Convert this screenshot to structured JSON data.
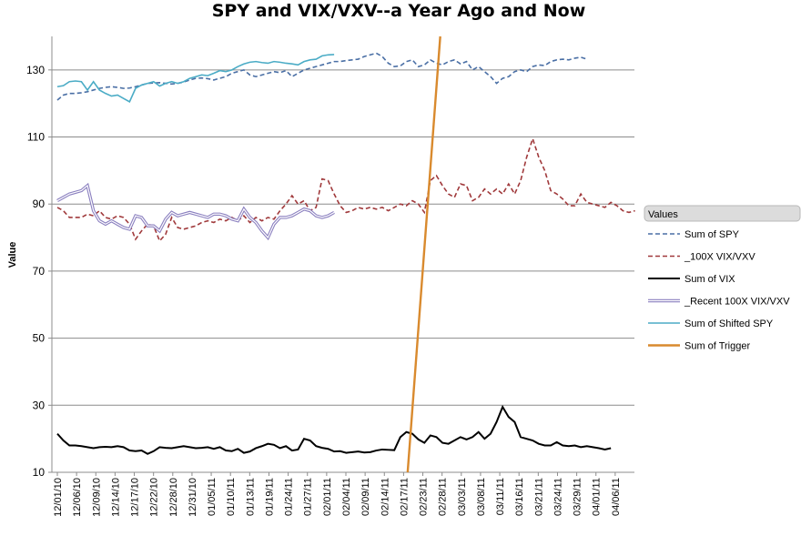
{
  "chart_data": {
    "type": "line",
    "title": "SPY and VIX/VXV--a Year Ago and Now",
    "ylabel": "Value",
    "ylim": [
      10,
      140
    ],
    "yticks": [
      10,
      30,
      50,
      70,
      90,
      110,
      130
    ],
    "grid": true,
    "legend_placement": "right",
    "legend_title": "Values",
    "x_tick_labels": [
      "12/01/10",
      "12/06/10",
      "12/09/10",
      "12/14/10",
      "12/17/10",
      "12/22/10",
      "12/28/10",
      "12/31/10",
      "01/05/11",
      "01/10/11",
      "01/13/11",
      "01/19/11",
      "01/24/11",
      "01/27/11",
      "02/01/11",
      "02/04/11",
      "02/09/11",
      "02/14/11",
      "02/17/11",
      "02/23/11",
      "02/28/11",
      "03/03/11",
      "03/08/11",
      "03/11/11",
      "03/16/11",
      "03/21/11",
      "03/24/11",
      "03/29/11",
      "04/01/11",
      "04/06/11"
    ],
    "series": [
      {
        "name": "Sum of SPY",
        "color": "#4a6fa5",
        "dash": "5,3",
        "width": 1.6,
        "values": [
          121,
          122.5,
          123,
          123,
          123.2,
          123.5,
          124,
          124.5,
          124.8,
          125,
          124.8,
          124.5,
          124.6,
          125,
          125.5,
          126,
          126.1,
          126.2,
          126,
          125.8,
          126,
          126.4,
          127,
          127.5,
          127.6,
          127.4,
          127,
          127.5,
          128,
          129,
          129.5,
          130,
          128.5,
          128,
          128.5,
          129,
          129.5,
          129.2,
          129.8,
          128,
          129,
          130,
          130.5,
          131,
          131.5,
          132,
          132.5,
          132.5,
          132.8,
          133,
          133.2,
          134,
          134.5,
          135,
          134,
          132,
          131,
          131.2,
          132.5,
          133,
          131,
          131.5,
          133,
          132,
          131.5,
          132.5,
          133,
          131.8,
          132.5,
          130,
          131,
          129.5,
          128,
          126,
          127.5,
          128,
          129.5,
          130,
          129.5,
          131,
          131.5,
          131.3,
          132.5,
          133,
          133.2,
          133,
          133.5,
          133.8,
          133.2
        ]
      },
      {
        "name": "_100X VIX/VXV",
        "color": "#a0393b",
        "dash": "5,3",
        "width": 1.6,
        "values": [
          89,
          88,
          86,
          86,
          86,
          87,
          86.5,
          88,
          86,
          85.5,
          86.5,
          86,
          84,
          79.5,
          82,
          84,
          83.5,
          79,
          81,
          86,
          83,
          82.5,
          83,
          83.5,
          84.5,
          85,
          84.5,
          85.5,
          85,
          86,
          85,
          86.5,
          84.5,
          86,
          85,
          86,
          85.5,
          88,
          90,
          92.5,
          90,
          91,
          88,
          89,
          97.5,
          97,
          93,
          89.5,
          87.5,
          88,
          89,
          88.5,
          89,
          88.5,
          89,
          88,
          89,
          90,
          89.5,
          91,
          90,
          87.5,
          97,
          98.5,
          95.5,
          93,
          92,
          96,
          95.5,
          91,
          92,
          94.5,
          93,
          94.5,
          93,
          96,
          93,
          97,
          104,
          109.5,
          104,
          100,
          94,
          93,
          91.5,
          89.5,
          89.5,
          93,
          90.5,
          90,
          89.5,
          89,
          90.5,
          89.5,
          88,
          87.5,
          88
        ]
      },
      {
        "name": "Sum of VIX",
        "color": "#000000",
        "dash": "",
        "width": 2.0,
        "values": [
          21.5,
          19.5,
          18,
          18,
          17.8,
          17.5,
          17.2,
          17.5,
          17.6,
          17.5,
          17.8,
          17.5,
          16.5,
          16.3,
          16.5,
          15.5,
          16.3,
          17.5,
          17.3,
          17.2,
          17.5,
          17.8,
          17.5,
          17.2,
          17.3,
          17.5,
          17,
          17.5,
          16.5,
          16.3,
          17,
          15.8,
          16.2,
          17.2,
          17.8,
          18.5,
          18.2,
          17.2,
          17.8,
          16.5,
          16.8,
          20,
          19.5,
          17.8,
          17.3,
          17,
          16.2,
          16.3,
          15.8,
          16,
          16.2,
          15.9,
          16,
          16.5,
          16.8,
          16.7,
          16.6,
          20.5,
          22,
          21.5,
          19.8,
          18.8,
          21,
          20.5,
          18.8,
          18.5,
          19.5,
          20.5,
          19.8,
          20.5,
          22,
          20,
          21.5,
          25,
          29.5,
          26.5,
          25,
          20.5,
          20,
          19.5,
          18.5,
          18,
          18,
          19,
          18,
          17.8,
          18,
          17.5,
          17.8,
          17.5,
          17.2,
          16.8,
          17.2
        ]
      },
      {
        "name": "_Recent 100X VIX/VXV",
        "color": "#8a7fbf",
        "dash": "",
        "width": 2.0,
        "outline": true,
        "values": [
          91,
          92,
          93,
          93.5,
          94,
          95.5,
          88,
          85,
          84,
          85,
          84,
          83,
          82.5,
          86.5,
          86,
          83.5,
          83.5,
          82,
          85.5,
          87.5,
          86.5,
          87,
          87.5,
          87,
          86.5,
          86,
          87,
          87,
          86.5,
          85.5,
          85,
          88.5,
          86,
          84.5,
          82,
          80,
          84,
          86,
          86,
          86.5,
          87.5,
          88.5,
          88,
          86.5,
          86,
          86.5,
          87.5
        ]
      },
      {
        "name": "Sum of Shifted SPY",
        "color": "#4bacc6",
        "dash": "",
        "width": 1.6,
        "values": [
          125,
          125.3,
          126.5,
          126.7,
          126.5,
          124,
          126.5,
          124,
          123,
          122.2,
          122.5,
          121.5,
          120.5,
          124.5,
          125.5,
          126,
          126.5,
          125.2,
          126,
          126.5,
          126,
          126.5,
          127.5,
          128,
          128.5,
          128.3,
          129,
          129.8,
          129.5,
          130,
          131,
          131.8,
          132.3,
          132.5,
          132.2,
          132,
          132.5,
          132.3,
          132,
          131.8,
          131.5,
          132.5,
          133,
          133.2,
          134.2,
          134.5,
          134.6
        ]
      },
      {
        "name": "Sum of Trigger",
        "color": "#d98a2e",
        "dash": "",
        "width": 2.4,
        "trigger_from_x_index": 18.4,
        "trigger_to_x_index": 20.0
      }
    ]
  }
}
